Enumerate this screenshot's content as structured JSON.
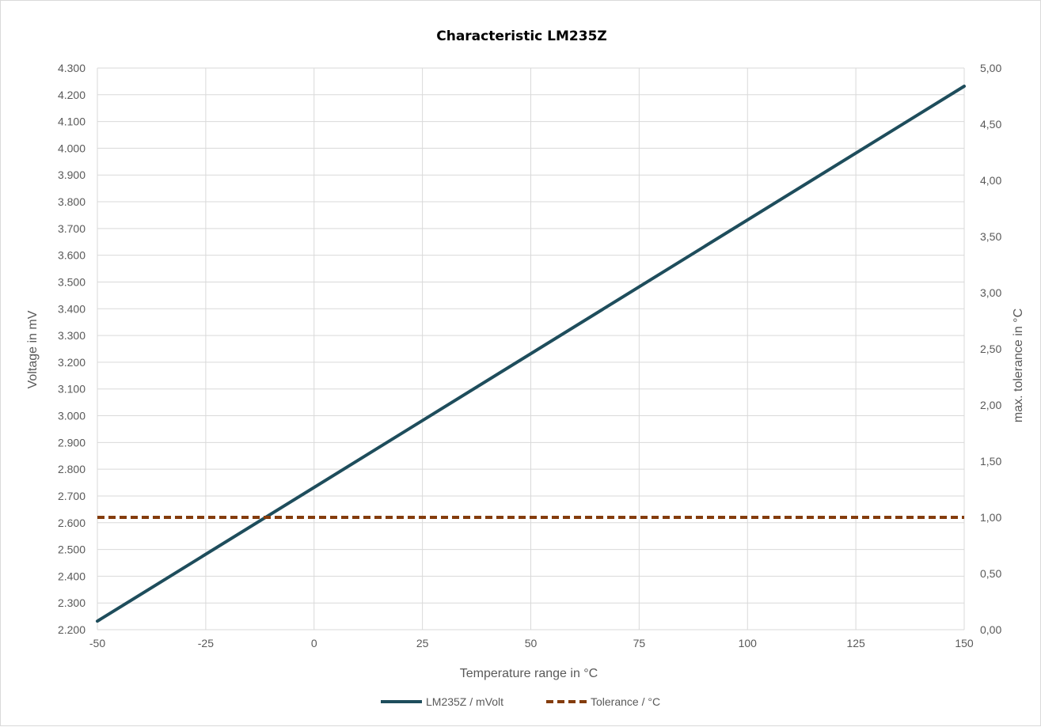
{
  "chart_data": {
    "type": "line",
    "title": "Characteristic LM235Z",
    "xlabel": "Temperature range in °C",
    "ylabel": "Voltage in mV",
    "y2label": "max. tolerance in °C",
    "xlim": [
      -50,
      150
    ],
    "ylim": [
      2200,
      4300
    ],
    "y2lim": [
      0,
      5
    ],
    "x_ticks": [
      "-50",
      "-25",
      "0",
      "25",
      "50",
      "75",
      "100",
      "125",
      "150"
    ],
    "y_ticks": [
      "2.200",
      "2.300",
      "2.400",
      "2.500",
      "2.600",
      "2.700",
      "2.800",
      "2.900",
      "3.000",
      "3.100",
      "3.200",
      "3.300",
      "3.400",
      "3.500",
      "3.600",
      "3.700",
      "3.800",
      "3.900",
      "4.000",
      "4.100",
      "4.200",
      "4.300"
    ],
    "y2_ticks": [
      "0,00",
      "0,50",
      "1,00",
      "1,50",
      "2,00",
      "2,50",
      "3,00",
      "3,50",
      "4,00",
      "4,50",
      "5,00"
    ],
    "grid": true,
    "legend_position": "bottom",
    "series": [
      {
        "name": "LM235Z / mVolt",
        "axis": "left",
        "color": "#1e4d5c",
        "style": "solid",
        "x": [
          -50,
          150
        ],
        "values": [
          2232,
          4232
        ]
      },
      {
        "name": "Tolerance / °C",
        "axis": "right",
        "color": "#843c0c",
        "style": "dashed",
        "x": [
          -50,
          150
        ],
        "values": [
          1.0,
          1.0
        ]
      }
    ]
  }
}
